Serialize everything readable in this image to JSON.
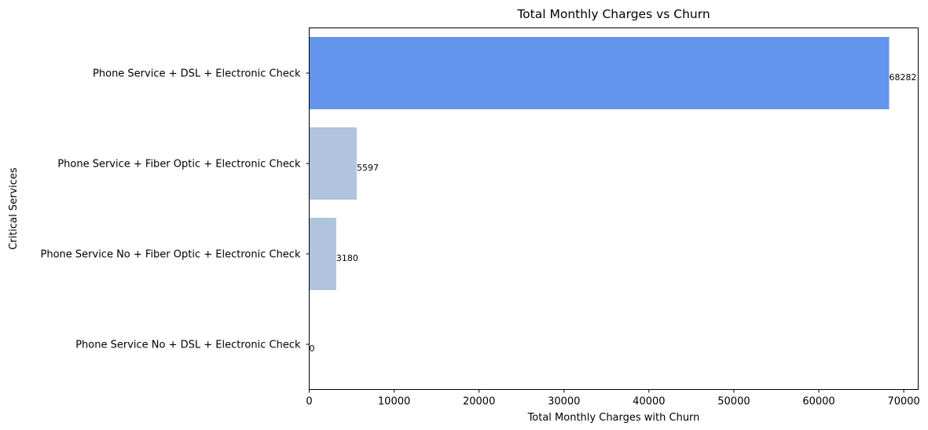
{
  "chart_data": {
    "type": "bar",
    "orientation": "horizontal",
    "title": "Total Monthly Charges vs Churn",
    "xlabel": "Total Monthly Charges with Churn",
    "ylabel": "Critical Services",
    "xlim": [
      0,
      71700
    ],
    "xticks": [
      0,
      10000,
      20000,
      30000,
      40000,
      50000,
      60000,
      70000
    ],
    "categories": [
      "Phone Service + DSL + Electronic Check",
      "Phone Service + Fiber Optic + Electronic Check",
      "Phone Service No + Fiber Optic + Electronic Check",
      "Phone Service No + DSL + Electronic Check"
    ],
    "values": [
      68282,
      5597,
      3180,
      0
    ],
    "value_labels": [
      "68282",
      "5597",
      "3180",
      "0"
    ],
    "colors": [
      "#6495ed",
      "#b0c4de",
      "#b0c4de",
      "#b0c4de"
    ],
    "grid": false,
    "legend": "none"
  }
}
